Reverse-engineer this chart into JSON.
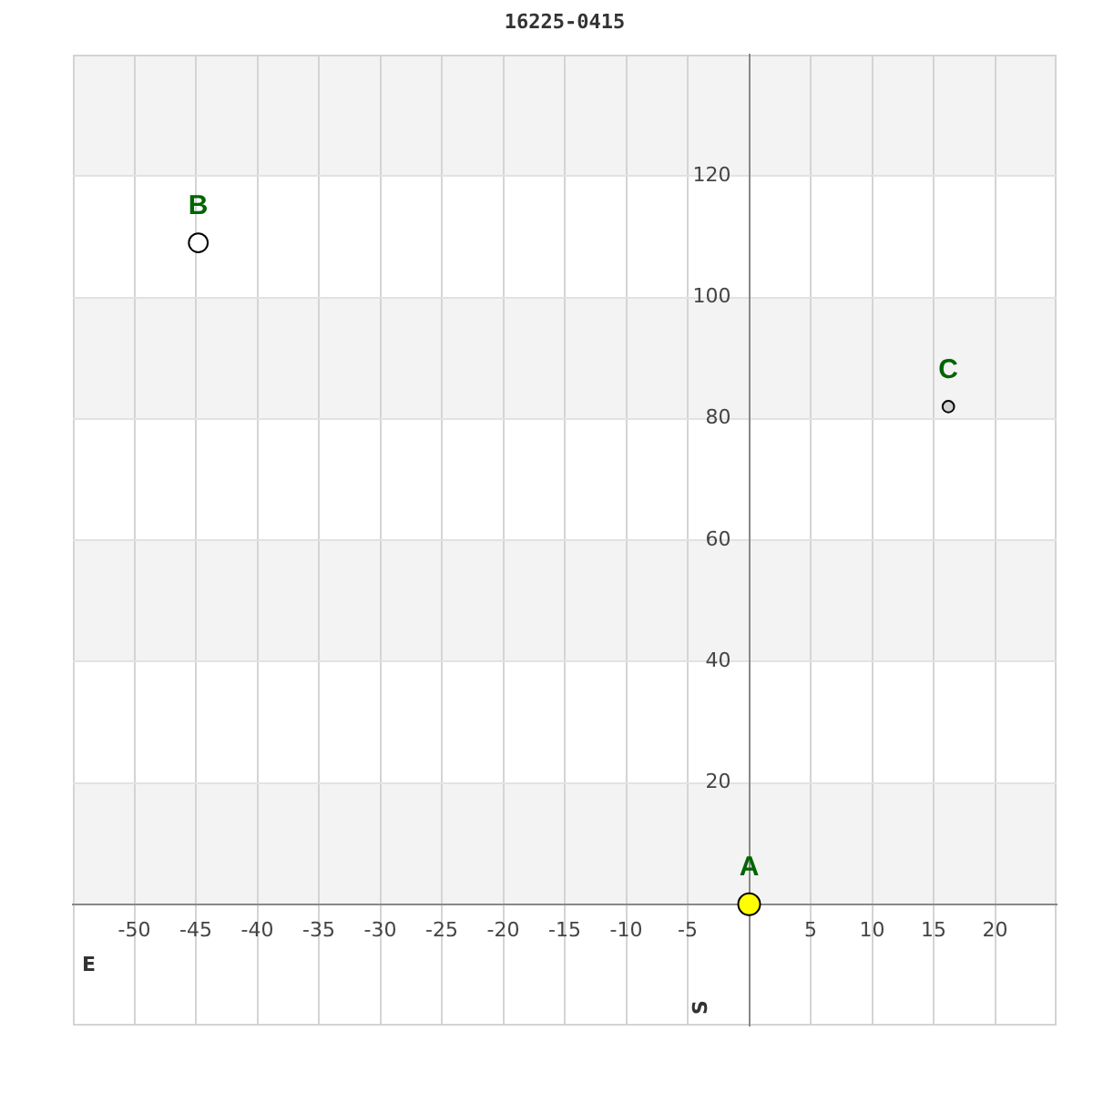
{
  "chart_data": {
    "type": "bubble",
    "title": "16225-0415",
    "xlabel": "E",
    "ylabel": "S",
    "xlim": [
      -55,
      25
    ],
    "ylim": [
      -20,
      140
    ],
    "xticks": [
      -50,
      -45,
      -40,
      -35,
      -30,
      -25,
      -20,
      -15,
      -10,
      -5,
      5,
      10,
      15,
      20
    ],
    "yticks": [
      {
        "value": 0,
        "label": null
      },
      20,
      40,
      60,
      80,
      100,
      120
    ],
    "grid": true,
    "marker": "circle",
    "series": [
      {
        "name": "A",
        "color": "#ffff00",
        "x": [
          0
        ],
        "values": [
          0
        ],
        "sizes": [
          1
        ]
      },
      {
        "name": "B",
        "color": "#ffffff",
        "x": [
          -44.8
        ],
        "values": [
          109
        ],
        "sizes": [
          0.75
        ]
      },
      {
        "name": "C",
        "color": "#d3d3d3",
        "x": [
          16.2
        ],
        "values": [
          82
        ],
        "sizes": [
          0.28
        ]
      }
    ]
  }
}
